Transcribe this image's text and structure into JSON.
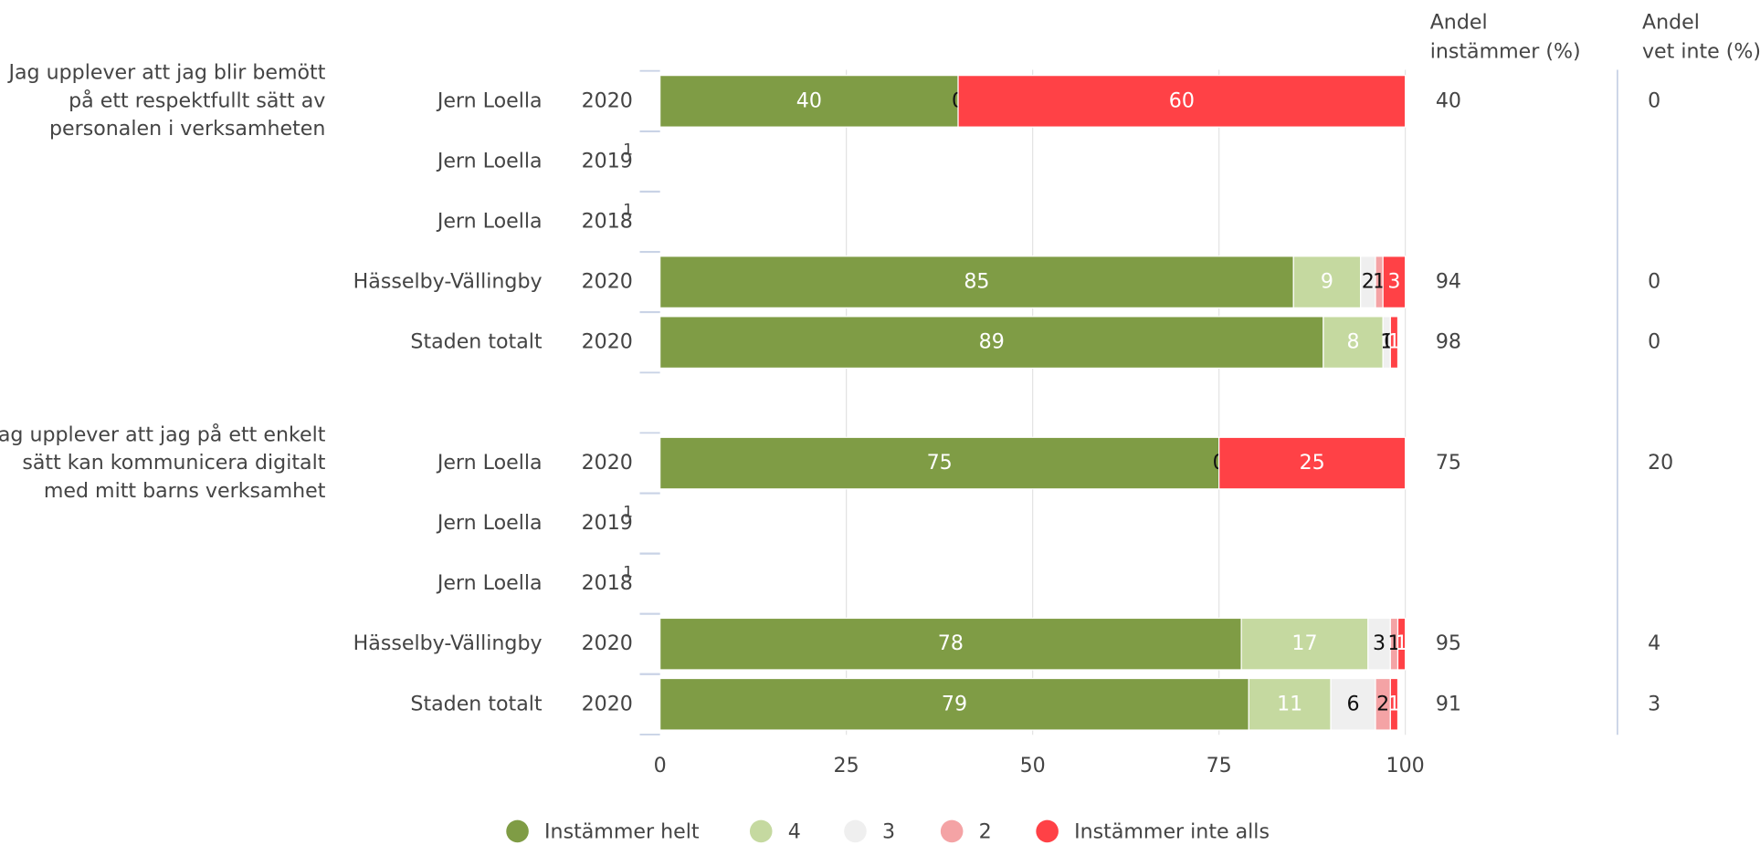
{
  "chart_data": {
    "type": "bar",
    "orientation": "horizontal",
    "stacked": true,
    "group_labels": [
      [
        "Jag upplever att jag blir bemött",
        "på ett respektfullt sätt av",
        "personalen i verksamheten"
      ],
      [
        "Jag upplever att jag på ett enkelt",
        "sätt kan kommunicera digitalt",
        "med mitt barns verksamhet"
      ]
    ],
    "categories": [
      "Jern Loella",
      "Jern Loella",
      "Jern Loella",
      "Hässelby-Vällingby",
      "Staden totalt",
      "Jern Loella",
      "Jern Loella",
      "Jern Loella",
      "Hässelby-Vällingby",
      "Staden totalt"
    ],
    "years": [
      "2020",
      "2019",
      "2018",
      "2020",
      "2020",
      "2020",
      "2019",
      "2018",
      "2020",
      "2020"
    ],
    "notes": [
      null,
      "1",
      "1",
      null,
      null,
      null,
      "1",
      "1",
      null,
      null
    ],
    "series": [
      {
        "name": "Instämmer helt",
        "color": "#7f9c45",
        "values": [
          40,
          null,
          null,
          85,
          89,
          75,
          null,
          null,
          78,
          79
        ]
      },
      {
        "name": "4",
        "color": "#c5d9a0",
        "values": [
          null,
          null,
          null,
          9,
          8,
          null,
          null,
          null,
          17,
          11
        ]
      },
      {
        "name": "3",
        "color": "#efefef",
        "values": [
          0,
          null,
          null,
          2,
          1,
          0,
          null,
          null,
          3,
          6
        ]
      },
      {
        "name": "2",
        "color": "#f4a3a5",
        "values": [
          null,
          null,
          null,
          1,
          0,
          null,
          null,
          null,
          1,
          2
        ]
      },
      {
        "name": "Instämmer inte alls",
        "color": "#ff4146",
        "values": [
          60,
          null,
          null,
          3,
          1,
          25,
          null,
          null,
          1,
          1
        ]
      }
    ],
    "columns": [
      {
        "header": [
          "Andel",
          "instämmer (%)"
        ],
        "values": [
          40,
          null,
          null,
          94,
          98,
          75,
          null,
          null,
          95,
          91
        ]
      },
      {
        "header": [
          "Andel",
          "vet inte (%)"
        ],
        "values": [
          0,
          null,
          null,
          0,
          0,
          20,
          null,
          null,
          4,
          3
        ]
      }
    ],
    "xlim": [
      0,
      100
    ],
    "xticks": [
      0,
      25,
      50,
      75,
      100
    ],
    "grid": true
  }
}
